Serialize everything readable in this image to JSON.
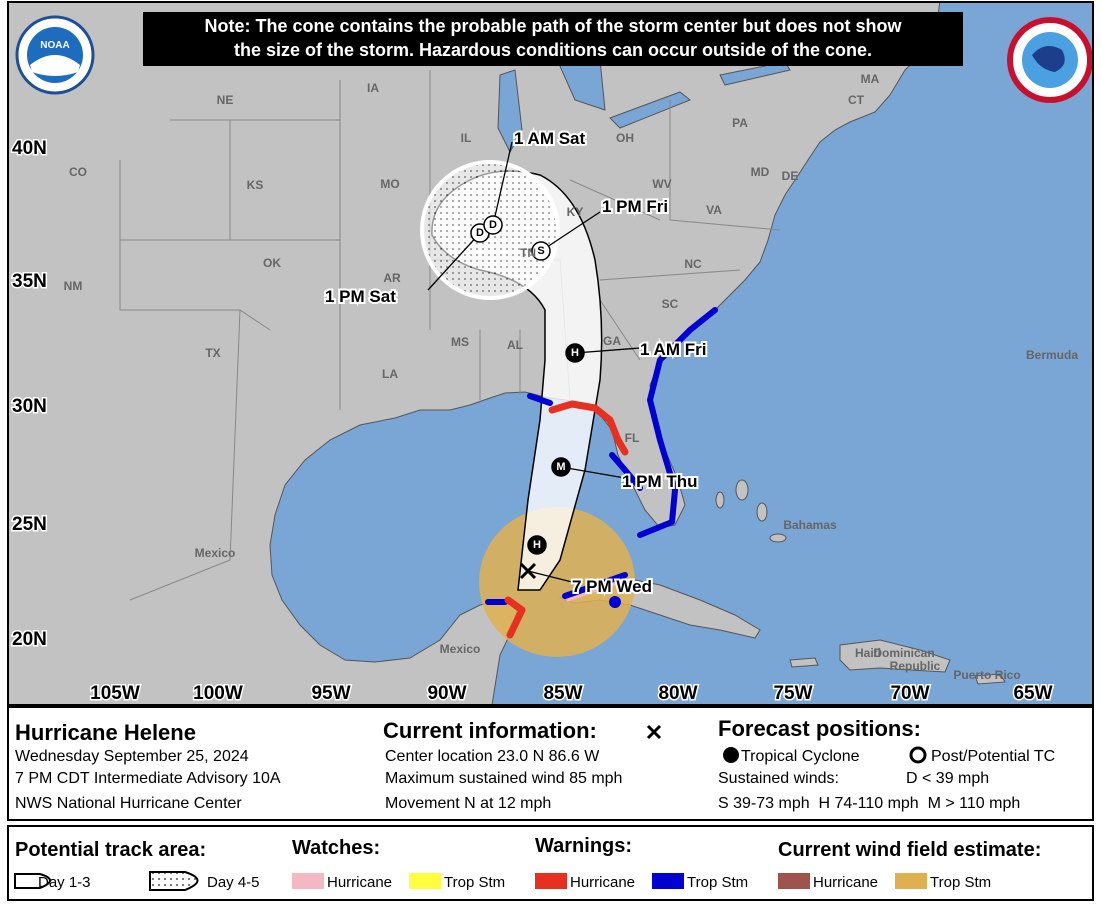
{
  "note": [
    "Note: The cone contains the probable path of the storm center but does not show",
    "the size of the storm. Hazardous conditions can occur outside of the cone."
  ],
  "logo": "NOAA",
  "map": {
    "places": [
      "NE",
      "IA",
      "IL",
      "OH",
      "PA",
      "CO",
      "KS",
      "MO",
      "KY",
      "WV",
      "VA",
      "MD",
      "DE",
      "MA",
      "CT",
      "OK",
      "TN",
      "NC",
      "AR",
      "SC",
      "NM",
      "TX",
      "MS",
      "AL",
      "GA",
      "LA",
      "FL",
      "Bermuda",
      "Bahamas",
      "Mexico",
      "Mexico",
      "Haiti",
      "Dominican",
      "Republic",
      "Puerto Rico"
    ],
    "latitudes": [
      "40N",
      "35N",
      "30N",
      "25N",
      "20N"
    ],
    "longitudes": [
      "105W",
      "100W",
      "95W",
      "90W",
      "85W",
      "80W",
      "75W",
      "70W",
      "65W"
    ]
  },
  "track": {
    "symbols": [
      "H",
      "M",
      "H",
      "S",
      "D",
      "D"
    ],
    "labels": [
      "7 PM Wed",
      "1 PM Thu",
      "1 AM Fri",
      "1 PM Fri",
      "1 PM Sat",
      "1 AM Sat"
    ]
  },
  "info": {
    "storm": "Hurricane Helene",
    "date": "Wednesday September 25, 2024",
    "advisory": "7 PM CDT Intermediate Advisory 10A",
    "office": "NWS National Hurricane Center",
    "current_title": "Current information:",
    "current": [
      "Center location 23.0 N 86.6 W",
      "Maximum sustained wind 85 mph",
      "Movement N at 12 mph"
    ],
    "forecast_title": "Forecast positions:",
    "tropical": "Tropical Cyclone",
    "post": "Post/Potential TC",
    "sustained": "Sustained winds:",
    "depression": "D < 39 mph",
    "scale": "S 39-73 mph  H 74-110 mph  M > 110 mph"
  },
  "legend": {
    "potential_title": "Potential track area:",
    "day13": "Day 1-3",
    "day45": "Day 4-5",
    "watches_title": "Watches:",
    "warnings_title": "Warnings:",
    "wind_title": "Current wind field estimate:",
    "watches": [
      "Hurricane",
      "Trop Stm"
    ],
    "warnings": [
      "Hurricane",
      "Trop Stm"
    ],
    "wind": [
      "Hurricane",
      "Trop Stm"
    ]
  }
}
